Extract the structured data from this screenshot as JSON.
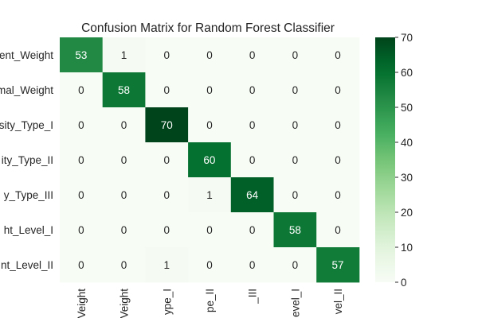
{
  "chart_data": {
    "type": "heatmap",
    "title": "Confusion Matrix for Random Forest Classifier",
    "row_labels": [
      "ent_Weight",
      "mal_Weight",
      "sity_Type_I",
      "ity_Type_II",
      "y_Type_III",
      "ht_Level_I",
      "nt_Level_II"
    ],
    "col_labels": [
      "Veight",
      "Veight",
      "ype_I",
      "pe_II",
      "_III",
      "evel_I",
      "vel_II"
    ],
    "matrix": [
      [
        53,
        1,
        0,
        0,
        0,
        0,
        0
      ],
      [
        0,
        58,
        0,
        0,
        0,
        0,
        0
      ],
      [
        0,
        0,
        70,
        0,
        0,
        0,
        0
      ],
      [
        0,
        0,
        0,
        60,
        0,
        0,
        0
      ],
      [
        0,
        0,
        0,
        1,
        64,
        0,
        0
      ],
      [
        0,
        0,
        0,
        0,
        0,
        58,
        0
      ],
      [
        0,
        0,
        1,
        0,
        0,
        0,
        57
      ]
    ],
    "colorbar": {
      "min": 0,
      "max": 70,
      "ticks": [
        0,
        10,
        20,
        30,
        40,
        50,
        60,
        70
      ],
      "colormap": "Greens"
    },
    "annotations": true
  }
}
